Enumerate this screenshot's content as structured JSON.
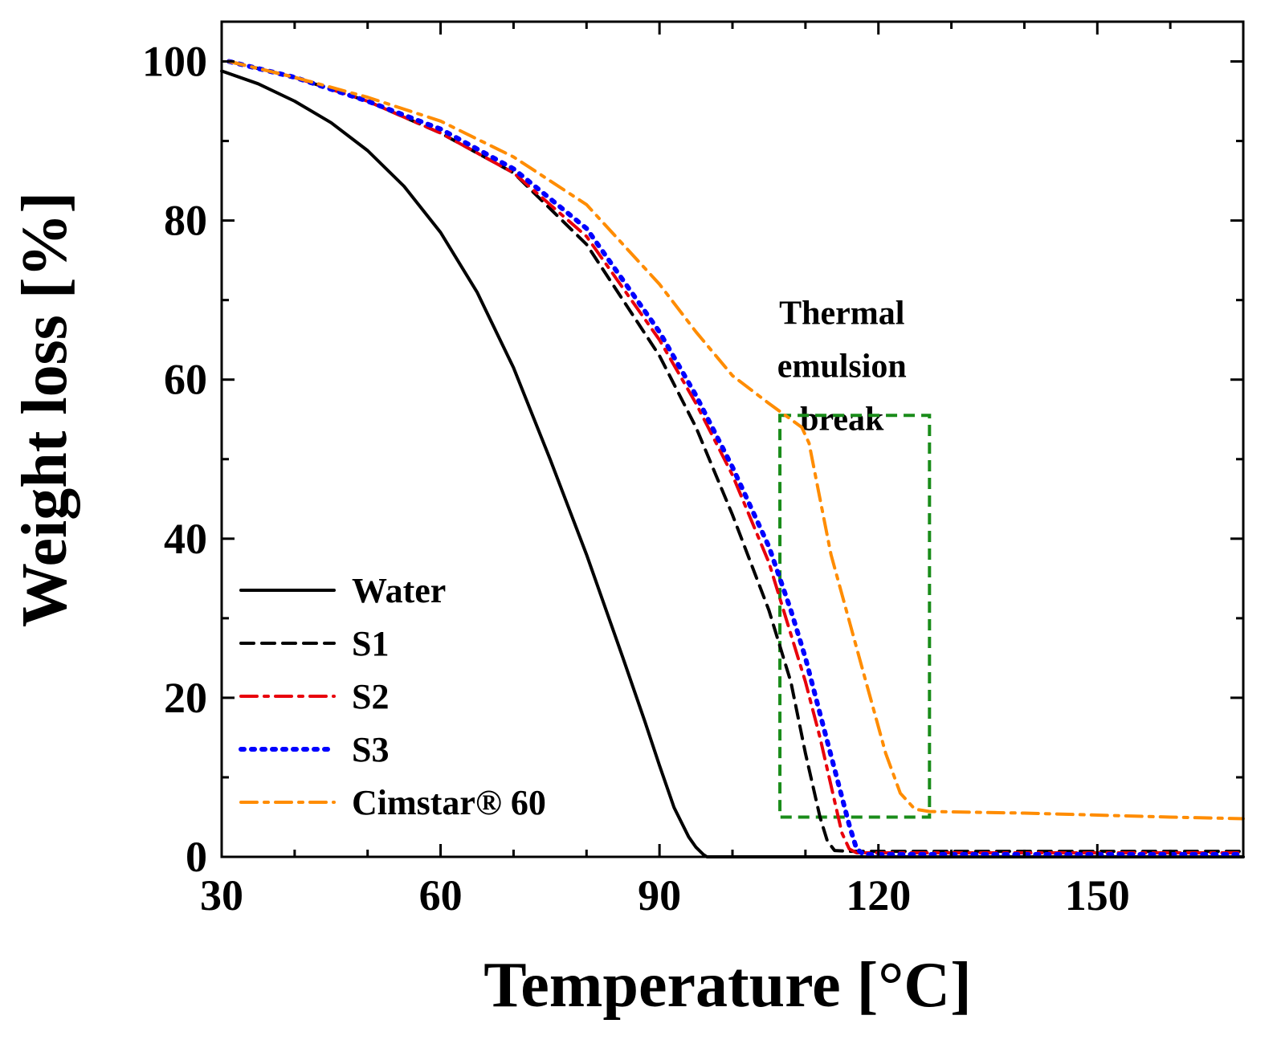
{
  "chart_data": {
    "type": "line",
    "xlabel": "Temperature [°C]",
    "ylabel": "Weight loss [%]",
    "xlim": [
      30,
      170
    ],
    "ylim": [
      0,
      105
    ],
    "xticks": [
      30,
      60,
      90,
      120,
      150
    ],
    "yticks": [
      0,
      20,
      40,
      60,
      80,
      100
    ],
    "grid": false,
    "legend_position": "bottom-left",
    "series": [
      {
        "name": "Water",
        "style": "solid",
        "color": "#000000",
        "x": [
          30,
          35,
          40,
          45,
          50,
          55,
          60,
          65,
          70,
          75,
          80,
          85,
          88,
          90,
          92,
          94,
          95,
          96,
          96.5,
          97,
          100,
          120,
          140,
          160,
          170
        ],
        "y": [
          98.8,
          97.2,
          95,
          92.3,
          88.8,
          84.3,
          78.5,
          71,
          61.5,
          50,
          38,
          25,
          17,
          11.5,
          6.2,
          2.5,
          1.2,
          0.3,
          0,
          0,
          0,
          0,
          0,
          0,
          0
        ]
      },
      {
        "name": "S1",
        "style": "dashed",
        "color": "#000000",
        "x": [
          31,
          40,
          50,
          60,
          70,
          80,
          90,
          95,
          100,
          105,
          108,
          110,
          112,
          113,
          114,
          116,
          130,
          150,
          170
        ],
        "y": [
          100,
          98,
          95,
          91,
          86,
          77,
          63,
          54,
          43,
          31,
          22,
          13,
          5,
          2,
          0.8,
          0.7,
          0.7,
          0.7,
          0.7
        ]
      },
      {
        "name": "S2",
        "style": "dash-dot",
        "color": "#e8000b",
        "x": [
          31,
          40,
          50,
          60,
          70,
          80,
          90,
          95,
          100,
          105,
          108,
          110,
          112,
          114,
          115,
          116,
          117,
          130,
          150,
          170
        ],
        "y": [
          100,
          98,
          95,
          91,
          86,
          78,
          65,
          57,
          48,
          37,
          28,
          22,
          15,
          7,
          3,
          1,
          0.5,
          0.5,
          0.5,
          0.5
        ]
      },
      {
        "name": "S3",
        "style": "dotted",
        "color": "#0000ff",
        "x": [
          31,
          40,
          50,
          60,
          70,
          80,
          90,
          95,
          100,
          105,
          108,
          110,
          112,
          114,
          116,
          117,
          118,
          130,
          150,
          170
        ],
        "y": [
          100,
          98,
          95,
          91.5,
          86.5,
          79,
          66,
          58,
          49,
          39,
          31,
          25,
          18,
          11,
          4,
          1,
          0.3,
          0.3,
          0.3,
          0.3
        ]
      },
      {
        "name": "Cimstar® 60",
        "style": "dash-dot",
        "color": "#ff8c00",
        "x": [
          31,
          40,
          50,
          60,
          70,
          80,
          90,
          95,
          100,
          105,
          108,
          109.5,
          110.5,
          112,
          113.5,
          115,
          116.5,
          118,
          119.5,
          121,
          123,
          125,
          127,
          140,
          160,
          170
        ],
        "y": [
          100,
          98,
          95.5,
          92.5,
          88,
          82,
          72,
          66,
          60.5,
          57,
          55,
          54,
          52,
          45,
          38,
          33,
          28,
          23,
          18,
          13,
          8,
          6,
          5.7,
          5.5,
          5,
          4.8
        ]
      }
    ],
    "annotations": [
      {
        "text_lines": [
          "Thermal",
          "emulsion",
          "break"
        ],
        "at": [
          115,
          67
        ]
      },
      {
        "box": {
          "x": [
            106.5,
            127
          ],
          "y": [
            5,
            55.5
          ]
        },
        "color": "#1a8c1a",
        "style": "dashed"
      }
    ]
  }
}
